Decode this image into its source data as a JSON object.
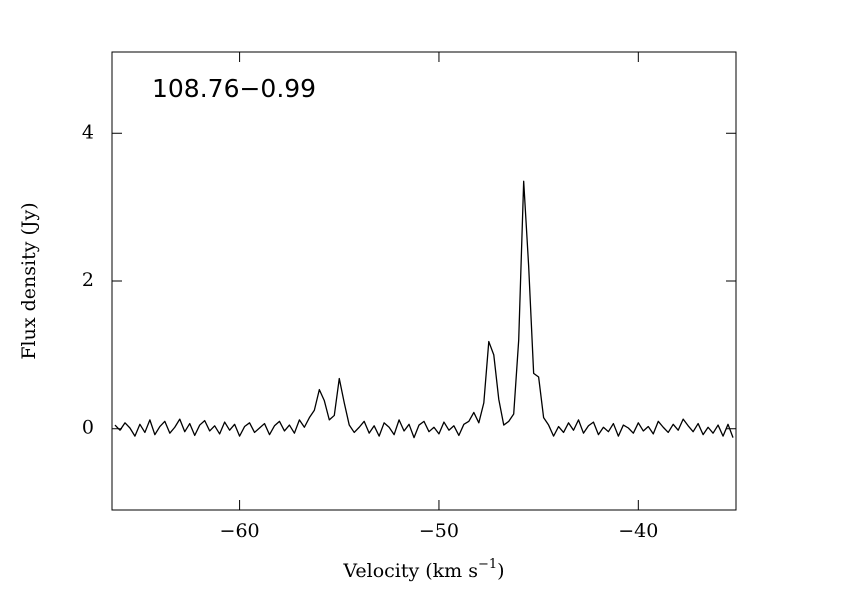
{
  "chart_data": {
    "type": "line",
    "annotation": "108.76−0.99",
    "ylabel": "Flux density (Jy)",
    "xlabel": [
      "Velocity (km s",
      "−1",
      ")"
    ],
    "color": "#000000",
    "xlim": [
      -66.4,
      -35.1
    ],
    "ylim": [
      -1.1,
      5.1
    ],
    "xticks": [
      {
        "value": -60,
        "label": "−60"
      },
      {
        "value": -50,
        "label": "−50"
      },
      {
        "value": -40,
        "label": "−40"
      }
    ],
    "yticks": [
      0,
      2,
      4
    ],
    "x": [
      -66.25,
      -66,
      -65.75,
      -65.5,
      -65.25,
      -65,
      -64.75,
      -64.5,
      -64.25,
      -64,
      -63.75,
      -63.5,
      -63.25,
      -63,
      -62.75,
      -62.5,
      -62.25,
      -62,
      -61.75,
      -61.5,
      -61.25,
      -61,
      -60.75,
      -60.5,
      -60.25,
      -60,
      -59.75,
      -59.5,
      -59.25,
      -59,
      -58.75,
      -58.5,
      -58.25,
      -58,
      -57.75,
      -57.5,
      -57.25,
      -57,
      -56.75,
      -56.5,
      -56.25,
      -56,
      -55.75,
      -55.5,
      -55.25,
      -55,
      -54.75,
      -54.5,
      -54.25,
      -54,
      -53.75,
      -53.5,
      -53.25,
      -53,
      -52.75,
      -52.5,
      -52.25,
      -52,
      -51.75,
      -51.5,
      -51.25,
      -51,
      -50.75,
      -50.5,
      -50.25,
      -50,
      -49.75,
      -49.5,
      -49.25,
      -49,
      -48.75,
      -48.5,
      -48.25,
      -48,
      -47.75,
      -47.5,
      -47.25,
      -47,
      -46.75,
      -46.5,
      -46.25,
      -46,
      -45.75,
      -45.5,
      -45.25,
      -45,
      -44.75,
      -44.5,
      -44.25,
      -44,
      -43.75,
      -43.5,
      -43.25,
      -43,
      -42.75,
      -42.5,
      -42.25,
      -42,
      -41.75,
      -41.5,
      -41.25,
      -41,
      -40.75,
      -40.5,
      -40.25,
      -40,
      -39.75,
      -39.5,
      -39.25,
      -39,
      -38.75,
      -38.5,
      -38.25,
      -38,
      -37.75,
      -37.5,
      -37.25,
      -37,
      -36.75,
      -36.5,
      -36.25,
      -36,
      -35.75,
      -35.5,
      -35.25
    ],
    "values": [
      0.05,
      -0.02,
      0.08,
      0.01,
      -0.1,
      0.06,
      -0.05,
      0.12,
      -0.08,
      0.03,
      0.1,
      -0.06,
      0.02,
      0.13,
      -0.04,
      0.07,
      -0.09,
      0.05,
      0.11,
      -0.03,
      0.04,
      -0.07,
      0.09,
      -0.02,
      0.06,
      -0.1,
      0.03,
      0.08,
      -0.05,
      0.01,
      0.07,
      -0.08,
      0.04,
      0.1,
      -0.03,
      0.05,
      -0.06,
      0.12,
      0.02,
      0.15,
      0.25,
      0.53,
      0.38,
      0.12,
      0.18,
      0.68,
      0.35,
      0.05,
      -0.05,
      0.02,
      0.1,
      -0.06,
      0.04,
      -0.1,
      0.08,
      0.02,
      -0.08,
      0.12,
      -0.03,
      0.06,
      -0.12,
      0.05,
      0.1,
      -0.04,
      0.02,
      -0.07,
      0.09,
      -0.02,
      0.04,
      -0.09,
      0.06,
      0.1,
      0.22,
      0.08,
      0.35,
      1.18,
      1.0,
      0.4,
      0.05,
      0.1,
      0.2,
      1.2,
      3.35,
      2.2,
      0.75,
      0.7,
      0.15,
      0.05,
      -0.1,
      0.03,
      -0.05,
      0.08,
      -0.02,
      0.12,
      -0.06,
      0.04,
      0.09,
      -0.08,
      0.02,
      -0.04,
      0.07,
      -0.1,
      0.05,
      0.01,
      -0.06,
      0.08,
      -0.03,
      0.03,
      -0.07,
      0.1,
      0.02,
      -0.05,
      0.06,
      -0.02,
      0.13,
      0.04,
      -0.04,
      0.07,
      -0.08,
      0.02,
      -0.06,
      0.05,
      -0.1,
      0.06,
      -0.12
    ]
  }
}
